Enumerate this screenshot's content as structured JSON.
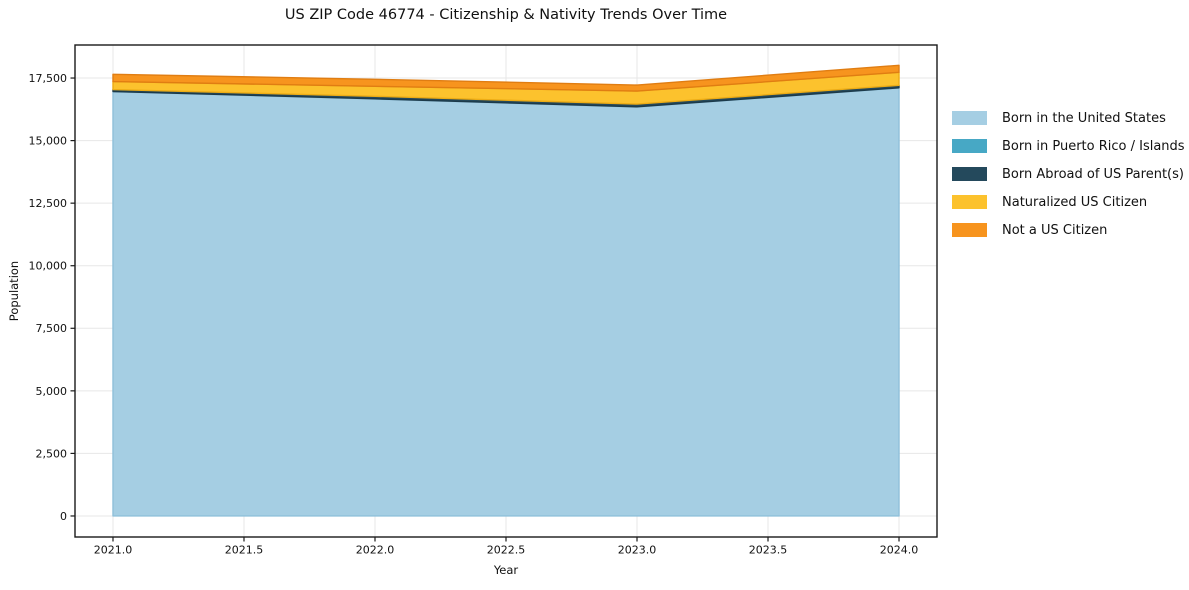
{
  "chart_data": {
    "type": "area",
    "stacked": true,
    "title": "US ZIP Code 46774 - Citizenship & Nativity Trends Over Time",
    "xlabel": "Year",
    "ylabel": "Population",
    "x": [
      2021,
      2022,
      2023,
      2024
    ],
    "series": [
      {
        "name": "Born in the United States",
        "color": "#a5cee3",
        "edge": "#8fc0da",
        "values": [
          16950,
          16660,
          16340,
          17100
        ]
      },
      {
        "name": "Born in Puerto Rico / Islands",
        "color": "#47a8c5",
        "edge": "#3b93ae",
        "values": [
          10,
          10,
          10,
          10
        ]
      },
      {
        "name": "Born Abroad of US Parent(s)",
        "color": "#24495c",
        "edge": "#1c3a4a",
        "values": [
          80,
          100,
          110,
          100
        ]
      },
      {
        "name": "Naturalized US Citizen",
        "color": "#fcc22d",
        "edge": "#edac15",
        "values": [
          320,
          400,
          520,
          520
        ]
      },
      {
        "name": "Not a US Citizen",
        "color": "#f7941e",
        "edge": "#e07d12",
        "values": [
          290,
          280,
          240,
          280
        ]
      }
    ],
    "totals": [
      17650,
      17450,
      17220,
      18010
    ],
    "xticks": [
      {
        "v": 2021.0,
        "label": "2021.0"
      },
      {
        "v": 2021.5,
        "label": "2021.5"
      },
      {
        "v": 2022.0,
        "label": "2022.0"
      },
      {
        "v": 2022.5,
        "label": "2022.5"
      },
      {
        "v": 2023.0,
        "label": "2023.0"
      },
      {
        "v": 2023.5,
        "label": "2023.5"
      },
      {
        "v": 2024.0,
        "label": "2024.0"
      }
    ],
    "yticks": [
      {
        "v": 0,
        "label": "0"
      },
      {
        "v": 2500,
        "label": "2,500"
      },
      {
        "v": 5000,
        "label": "5,000"
      },
      {
        "v": 7500,
        "label": "7,500"
      },
      {
        "v": 10000,
        "label": "10,000"
      },
      {
        "v": 12500,
        "label": "12,500"
      },
      {
        "v": 15000,
        "label": "15,000"
      },
      {
        "v": 17500,
        "label": "17,500"
      }
    ],
    "xlim": [
      2020.855,
      2024.145
    ],
    "ylim": [
      -840,
      18820
    ],
    "grid": true,
    "legend_position": "right-outside"
  }
}
